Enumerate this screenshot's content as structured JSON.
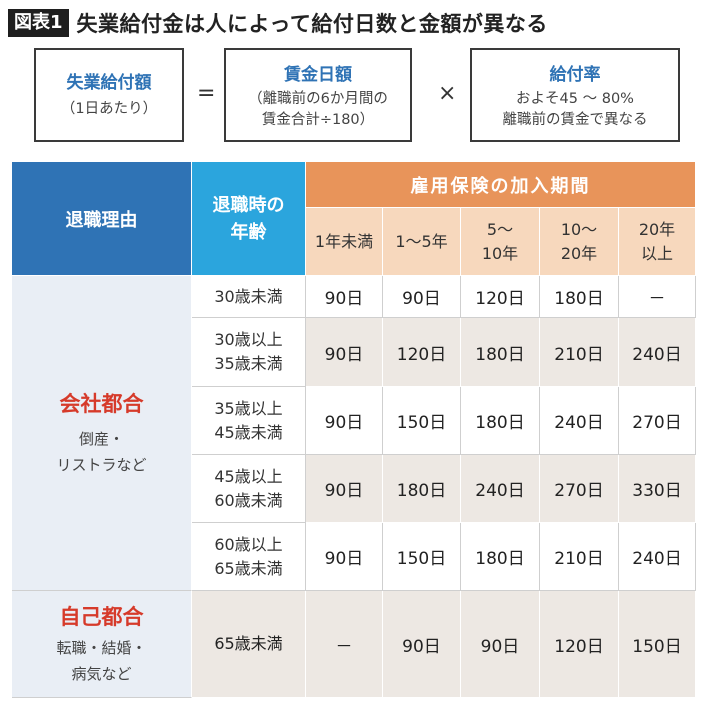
{
  "title": {
    "badge": "図表1",
    "text": "失業給付金は人によって給付日数と金額が異なる"
  },
  "formula": {
    "box1": {
      "head": "失業給付額",
      "sub": "（1日あたり）"
    },
    "equals": "=",
    "box2": {
      "head": "賃金日額",
      "sub1": "（離職前の6か月間の",
      "sub2": "賃金合計÷180）"
    },
    "times": "×",
    "box3": {
      "head": "給付率",
      "sub1": "およそ45 ～ 80%",
      "sub2": "離職前の賃金で異なる"
    }
  },
  "table": {
    "header": {
      "reason": "退職理由",
      "age_line1": "退職時の",
      "age_line2": "年齢",
      "period": "雇用保険の加入期間",
      "periods": [
        {
          "l1": "1年未満",
          "l2": ""
        },
        {
          "l1": "1～5年",
          "l2": ""
        },
        {
          "l1": "5～",
          "l2": "10年"
        },
        {
          "l1": "10～",
          "l2": "20年"
        },
        {
          "l1": "20年",
          "l2": "以上"
        }
      ]
    },
    "groups": [
      {
        "main": "会社都合",
        "sub1": "倒産・",
        "sub2": "リストラなど"
      },
      {
        "main": "自己都合",
        "sub1": "転職・結婚・",
        "sub2": "病気など"
      }
    ],
    "rows": [
      {
        "age1": "30歳未満",
        "age2": "",
        "values": [
          "90日",
          "90日",
          "120日",
          "180日",
          "－"
        ]
      },
      {
        "age1": "30歳以上",
        "age2": "35歳未満",
        "values": [
          "90日",
          "120日",
          "180日",
          "210日",
          "240日"
        ]
      },
      {
        "age1": "35歳以上",
        "age2": "45歳未満",
        "values": [
          "90日",
          "150日",
          "180日",
          "240日",
          "270日"
        ]
      },
      {
        "age1": "45歳以上",
        "age2": "60歳未満",
        "values": [
          "90日",
          "180日",
          "240日",
          "270日",
          "330日"
        ]
      },
      {
        "age1": "60歳以上",
        "age2": "65歳未満",
        "values": [
          "90日",
          "150日",
          "180日",
          "210日",
          "240日"
        ]
      },
      {
        "age1": "65歳未満",
        "age2": "",
        "values": [
          "－",
          "90日",
          "90日",
          "120日",
          "150日"
        ]
      }
    ]
  }
}
